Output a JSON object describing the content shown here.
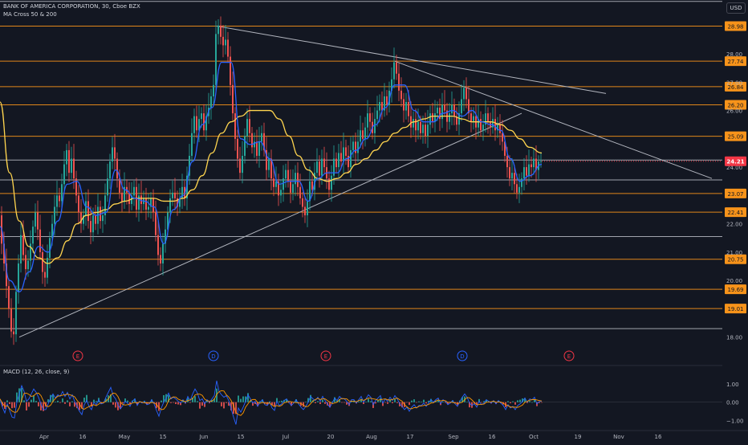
{
  "header": {
    "symbol_line": "BANK OF AMERICA CORPORATION, 30, Cboe BZX",
    "indicator": "MA Cross 50 & 200",
    "currency": "USD"
  },
  "macd": {
    "label": "MACD (12, 26, close, 9)",
    "ticks": [
      {
        "v": 1.0,
        "label": "1.00"
      },
      {
        "v": 0.0,
        "label": "0.00"
      },
      {
        "v": -1.0,
        "label": "−1.00"
      }
    ]
  },
  "colors": {
    "background": "#131722",
    "level_orange": "#f7931a",
    "level_white": "#d1d4dc",
    "ma_fast": "#2962ff",
    "ma_slow": "#ffd54f",
    "bull": "#26a69a",
    "bear": "#ef5350",
    "trendline": "#b2b5be",
    "price_tag": "#f23645"
  },
  "chart_data": {
    "type": "line",
    "title": "BANK OF AMERICA CORPORATION, 30, Cboe BZX",
    "y_axis": {
      "min": 17.0,
      "max": 29.9,
      "ticks": [
        18.0,
        20.0,
        21.0,
        22.0,
        24.0,
        26.0,
        27.0,
        28.0
      ],
      "tick_labels": [
        "18.00",
        "20.00",
        "21.00",
        "22.00",
        "24.00",
        "26.00",
        "27.00",
        "28.00"
      ]
    },
    "x_axis": {
      "labels": [
        "Apr",
        "16",
        "May",
        "15",
        "Jun",
        "15",
        "Jul",
        "20",
        "Aug",
        "17",
        "Sep",
        "16",
        "Oct",
        "19",
        "Nov",
        "16"
      ]
    },
    "current_price": {
      "value": 24.21,
      "label": "24.21"
    },
    "levels": [
      {
        "value": 28.98,
        "label": "28.98",
        "color": "orange"
      },
      {
        "value": 27.74,
        "label": "27.74",
        "color": "orange"
      },
      {
        "value": 26.84,
        "label": "26.84",
        "color": "orange"
      },
      {
        "value": 26.2,
        "label": "26.20",
        "color": "orange"
      },
      {
        "value": 25.09,
        "label": "25.09",
        "color": "orange"
      },
      {
        "value": 23.07,
        "label": "23.07",
        "color": "orange"
      },
      {
        "value": 22.41,
        "label": "22.41",
        "color": "orange"
      },
      {
        "value": 20.75,
        "label": "20.75",
        "color": "orange"
      },
      {
        "value": 19.69,
        "label": "19.69",
        "color": "orange"
      },
      {
        "value": 19.01,
        "label": "19.01",
        "color": "orange"
      },
      {
        "value": 29.85,
        "label": "",
        "color": "white"
      },
      {
        "value": 24.25,
        "label": "",
        "color": "white"
      },
      {
        "value": 23.55,
        "label": "",
        "color": "white"
      },
      {
        "value": 21.55,
        "label": "",
        "color": "white"
      },
      {
        "value": 18.3,
        "label": "",
        "color": "white"
      }
    ],
    "price": [
      [
        0,
        22.3
      ],
      [
        3,
        21.3
      ],
      [
        6,
        20.6
      ],
      [
        9,
        19.8
      ],
      [
        12,
        19.0
      ],
      [
        15,
        18.2
      ],
      [
        18,
        18.1
      ],
      [
        21,
        19.6
      ],
      [
        24,
        20.6
      ],
      [
        27,
        21.6
      ],
      [
        30,
        20.9
      ],
      [
        33,
        20.4
      ],
      [
        36,
        20.7
      ],
      [
        39,
        21.3
      ],
      [
        42,
        21.9
      ],
      [
        45,
        22.4
      ],
      [
        48,
        21.8
      ],
      [
        51,
        21.0
      ],
      [
        54,
        20.3
      ],
      [
        57,
        20.1
      ],
      [
        60,
        20.8
      ],
      [
        63,
        21.5
      ],
      [
        66,
        22.0
      ],
      [
        69,
        22.6
      ],
      [
        72,
        23.0
      ],
      [
        75,
        22.8
      ],
      [
        78,
        23.4
      ],
      [
        81,
        24.1
      ],
      [
        84,
        24.6
      ],
      [
        87,
        23.8
      ],
      [
        90,
        24.3
      ],
      [
        93,
        23.6
      ],
      [
        96,
        23.0
      ],
      [
        99,
        22.4
      ],
      [
        102,
        22.0
      ],
      [
        105,
        22.3
      ],
      [
        108,
        22.8
      ],
      [
        111,
        22.1
      ],
      [
        114,
        21.7
      ],
      [
        117,
        22.3
      ],
      [
        120,
        22.0
      ],
      [
        123,
        22.6
      ],
      [
        126,
        22.1
      ],
      [
        129,
        22.3
      ],
      [
        132,
        23.0
      ],
      [
        135,
        23.6
      ],
      [
        138,
        24.2
      ],
      [
        141,
        24.7
      ],
      [
        144,
        24.3
      ],
      [
        147,
        23.6
      ],
      [
        150,
        23.1
      ],
      [
        153,
        22.8
      ],
      [
        156,
        23.3
      ],
      [
        159,
        23.1
      ],
      [
        162,
        22.7
      ],
      [
        165,
        23.0
      ],
      [
        168,
        23.3
      ],
      [
        171,
        22.5
      ],
      [
        174,
        23.0
      ],
      [
        177,
        22.7
      ],
      [
        180,
        22.9
      ],
      [
        183,
        22.5
      ],
      [
        186,
        22.6
      ],
      [
        189,
        22.9
      ],
      [
        192,
        22.4
      ],
      [
        195,
        21.6
      ],
      [
        198,
        20.9
      ],
      [
        201,
        20.6
      ],
      [
        204,
        21.3
      ],
      [
        207,
        21.8
      ],
      [
        210,
        22.4
      ],
      [
        213,
        22.9
      ],
      [
        216,
        23.1
      ],
      [
        219,
        22.9
      ],
      [
        222,
        22.6
      ],
      [
        225,
        22.9
      ],
      [
        228,
        23.3
      ],
      [
        231,
        22.9
      ],
      [
        234,
        23.7
      ],
      [
        237,
        24.4
      ],
      [
        240,
        25.2
      ],
      [
        243,
        25.8
      ],
      [
        246,
        25.3
      ],
      [
        249,
        25.7
      ],
      [
        252,
        25.9
      ],
      [
        255,
        25.3
      ],
      [
        258,
        25.8
      ],
      [
        261,
        26.1
      ],
      [
        264,
        26.5
      ],
      [
        267,
        26.9
      ],
      [
        270,
        28.7
      ],
      [
        273,
        29.0
      ],
      [
        276,
        28.6
      ],
      [
        279,
        28.3
      ],
      [
        282,
        28.5
      ],
      [
        285,
        27.9
      ],
      [
        288,
        26.9
      ],
      [
        291,
        25.9
      ],
      [
        294,
        25.0
      ],
      [
        297,
        24.3
      ],
      [
        300,
        23.8
      ],
      [
        303,
        24.4
      ],
      [
        306,
        25.1
      ],
      [
        309,
        25.7
      ],
      [
        312,
        25.2
      ],
      [
        315,
        24.7
      ],
      [
        318,
        24.9
      ],
      [
        321,
        24.4
      ],
      [
        324,
        24.9
      ],
      [
        327,
        25.2
      ],
      [
        330,
        24.6
      ],
      [
        333,
        23.9
      ],
      [
        336,
        24.3
      ],
      [
        339,
        23.6
      ],
      [
        342,
        23.3
      ],
      [
        345,
        23.5
      ],
      [
        348,
        23.0
      ],
      [
        351,
        23.2
      ],
      [
        354,
        23.6
      ],
      [
        357,
        23.9
      ],
      [
        360,
        23.5
      ],
      [
        363,
        23.1
      ],
      [
        366,
        23.4
      ],
      [
        369,
        23.8
      ],
      [
        372,
        23.3
      ],
      [
        375,
        22.9
      ],
      [
        378,
        22.6
      ],
      [
        381,
        22.3
      ],
      [
        384,
        22.8
      ],
      [
        387,
        23.5
      ],
      [
        390,
        23.2
      ],
      [
        393,
        23.8
      ],
      [
        396,
        24.2
      ],
      [
        399,
        23.7
      ],
      [
        402,
        24.3
      ],
      [
        405,
        24.0
      ],
      [
        408,
        23.6
      ],
      [
        411,
        23.2
      ],
      [
        414,
        23.7
      ],
      [
        417,
        24.3
      ],
      [
        420,
        24.0
      ],
      [
        423,
        24.5
      ],
      [
        426,
        24.2
      ],
      [
        429,
        24.7
      ],
      [
        432,
        24.4
      ],
      [
        435,
        24.0
      ],
      [
        438,
        24.6
      ],
      [
        441,
        24.9
      ],
      [
        444,
        24.5
      ],
      [
        447,
        24.9
      ],
      [
        450,
        25.3
      ],
      [
        453,
        25.0
      ],
      [
        456,
        25.4
      ],
      [
        459,
        25.9
      ],
      [
        462,
        25.6
      ],
      [
        465,
        25.2
      ],
      [
        468,
        25.7
      ],
      [
        471,
        26.0
      ],
      [
        474,
        26.3
      ],
      [
        477,
        26.0
      ],
      [
        480,
        26.5
      ],
      [
        483,
        26.2
      ],
      [
        486,
        26.7
      ],
      [
        489,
        27.1
      ],
      [
        492,
        27.7
      ],
      [
        495,
        27.3
      ],
      [
        498,
        26.7
      ],
      [
        501,
        26.4
      ],
      [
        504,
        26.0
      ],
      [
        507,
        26.3
      ],
      [
        510,
        25.8
      ],
      [
        513,
        25.4
      ],
      [
        516,
        25.7
      ],
      [
        519,
        25.3
      ],
      [
        522,
        25.6
      ],
      [
        525,
        25.2
      ],
      [
        528,
        25.5
      ],
      [
        531,
        25.1
      ],
      [
        534,
        25.5
      ],
      [
        537,
        25.9
      ],
      [
        540,
        25.6
      ],
      [
        543,
        25.9
      ],
      [
        546,
        26.1
      ],
      [
        549,
        25.7
      ],
      [
        552,
        26.2
      ],
      [
        555,
        26.0
      ],
      [
        558,
        25.6
      ],
      [
        561,
        25.9
      ],
      [
        564,
        26.2
      ],
      [
        567,
        25.8
      ],
      [
        570,
        25.5
      ],
      [
        573,
        25.9
      ],
      [
        576,
        26.4
      ],
      [
        579,
        26.8
      ],
      [
        582,
        26.4
      ],
      [
        585,
        25.9
      ],
      [
        588,
        25.6
      ],
      [
        591,
        25.8
      ],
      [
        594,
        25.4
      ],
      [
        597,
        25.7
      ],
      [
        600,
        25.3
      ],
      [
        603,
        25.5
      ],
      [
        606,
        25.9
      ],
      [
        609,
        25.6
      ],
      [
        612,
        25.4
      ],
      [
        615,
        25.7
      ],
      [
        618,
        25.3
      ],
      [
        621,
        25.5
      ],
      [
        624,
        25.2
      ],
      [
        627,
        24.9
      ],
      [
        630,
        24.4
      ],
      [
        633,
        24.0
      ],
      [
        636,
        23.6
      ],
      [
        639,
        23.8
      ],
      [
        642,
        23.4
      ],
      [
        645,
        23.1
      ],
      [
        648,
        23.3
      ],
      [
        651,
        23.6
      ],
      [
        654,
        24.0
      ],
      [
        657,
        23.7
      ],
      [
        660,
        24.1
      ],
      [
        663,
        24.0
      ],
      [
        666,
        24.3
      ],
      [
        669,
        23.9
      ],
      [
        672,
        24.2
      ],
      [
        675,
        24.21
      ]
    ],
    "ma_fast": [
      [
        0,
        21.9
      ],
      [
        12,
        20.0
      ],
      [
        24,
        19.6
      ],
      [
        36,
        20.3
      ],
      [
        48,
        21.2
      ],
      [
        60,
        21.0
      ],
      [
        72,
        22.1
      ],
      [
        84,
        23.4
      ],
      [
        96,
        23.5
      ],
      [
        108,
        22.6
      ],
      [
        120,
        22.3
      ],
      [
        132,
        22.4
      ],
      [
        144,
        23.9
      ],
      [
        156,
        23.2
      ],
      [
        168,
        22.9
      ],
      [
        180,
        22.8
      ],
      [
        192,
        22.6
      ],
      [
        204,
        21.3
      ],
      [
        216,
        22.5
      ],
      [
        228,
        23.0
      ],
      [
        240,
        24.2
      ],
      [
        252,
        25.5
      ],
      [
        264,
        26.1
      ],
      [
        276,
        27.7
      ],
      [
        288,
        27.7
      ],
      [
        300,
        25.0
      ],
      [
        312,
        24.8
      ],
      [
        324,
        24.9
      ],
      [
        336,
        24.3
      ],
      [
        348,
        23.4
      ],
      [
        360,
        23.5
      ],
      [
        372,
        23.5
      ],
      [
        384,
        22.8
      ],
      [
        396,
        23.6
      ],
      [
        408,
        23.8
      ],
      [
        420,
        23.8
      ],
      [
        432,
        24.3
      ],
      [
        444,
        24.6
      ],
      [
        456,
        25.0
      ],
      [
        468,
        25.5
      ],
      [
        480,
        26.1
      ],
      [
        492,
        26.9
      ],
      [
        504,
        26.9
      ],
      [
        516,
        26.0
      ],
      [
        528,
        25.6
      ],
      [
        540,
        25.6
      ],
      [
        552,
        25.9
      ],
      [
        564,
        26.0
      ],
      [
        576,
        25.8
      ],
      [
        588,
        26.0
      ],
      [
        600,
        25.6
      ],
      [
        612,
        25.5
      ],
      [
        624,
        25.3
      ],
      [
        636,
        24.3
      ],
      [
        648,
        23.5
      ],
      [
        660,
        23.7
      ],
      [
        675,
        24.1
      ]
    ],
    "ma_slow": [
      [
        0,
        26.3
      ],
      [
        12,
        23.8
      ],
      [
        24,
        22.1
      ],
      [
        36,
        21.2
      ],
      [
        48,
        20.8
      ],
      [
        60,
        20.6
      ],
      [
        72,
        20.8
      ],
      [
        84,
        21.4
      ],
      [
        96,
        22.0
      ],
      [
        108,
        22.3
      ],
      [
        120,
        22.4
      ],
      [
        132,
        22.5
      ],
      [
        144,
        22.7
      ],
      [
        156,
        22.8
      ],
      [
        168,
        22.9
      ],
      [
        180,
        22.9
      ],
      [
        192,
        22.9
      ],
      [
        204,
        22.8
      ],
      [
        216,
        22.8
      ],
      [
        228,
        22.9
      ],
      [
        240,
        23.2
      ],
      [
        252,
        23.7
      ],
      [
        264,
        24.5
      ],
      [
        276,
        25.2
      ],
      [
        288,
        25.6
      ],
      [
        300,
        25.8
      ],
      [
        312,
        26.0
      ],
      [
        324,
        26.0
      ],
      [
        336,
        26.0
      ],
      [
        348,
        25.7
      ],
      [
        360,
        25.1
      ],
      [
        372,
        24.4
      ],
      [
        384,
        23.9
      ],
      [
        396,
        23.6
      ],
      [
        408,
        23.5
      ],
      [
        420,
        23.6
      ],
      [
        432,
        23.8
      ],
      [
        444,
        24.1
      ],
      [
        456,
        24.3
      ],
      [
        468,
        24.6
      ],
      [
        480,
        24.9
      ],
      [
        492,
        25.2
      ],
      [
        504,
        25.4
      ],
      [
        516,
        25.6
      ],
      [
        528,
        25.7
      ],
      [
        540,
        25.8
      ],
      [
        552,
        25.8
      ],
      [
        564,
        25.8
      ],
      [
        576,
        25.7
      ],
      [
        588,
        25.6
      ],
      [
        600,
        25.6
      ],
      [
        612,
        25.6
      ],
      [
        624,
        25.5
      ],
      [
        636,
        25.3
      ],
      [
        648,
        25.0
      ],
      [
        660,
        24.7
      ],
      [
        675,
        24.5
      ]
    ],
    "trendlines": [
      {
        "p1": [
          270,
          28.98
        ],
        "p2": [
          755,
          26.6
        ]
      },
      {
        "p1": [
          492,
          27.74
        ],
        "p2": [
          887,
          23.6
        ]
      },
      {
        "p1": [
          24,
          18.0
        ],
        "p2": [
          650,
          25.9
        ]
      }
    ],
    "events": [
      {
        "type": "E",
        "x": 97
      },
      {
        "type": "D",
        "x": 266
      },
      {
        "type": "E",
        "x": 406
      },
      {
        "type": "D",
        "x": 576
      },
      {
        "type": "E",
        "x": 709
      }
    ]
  }
}
